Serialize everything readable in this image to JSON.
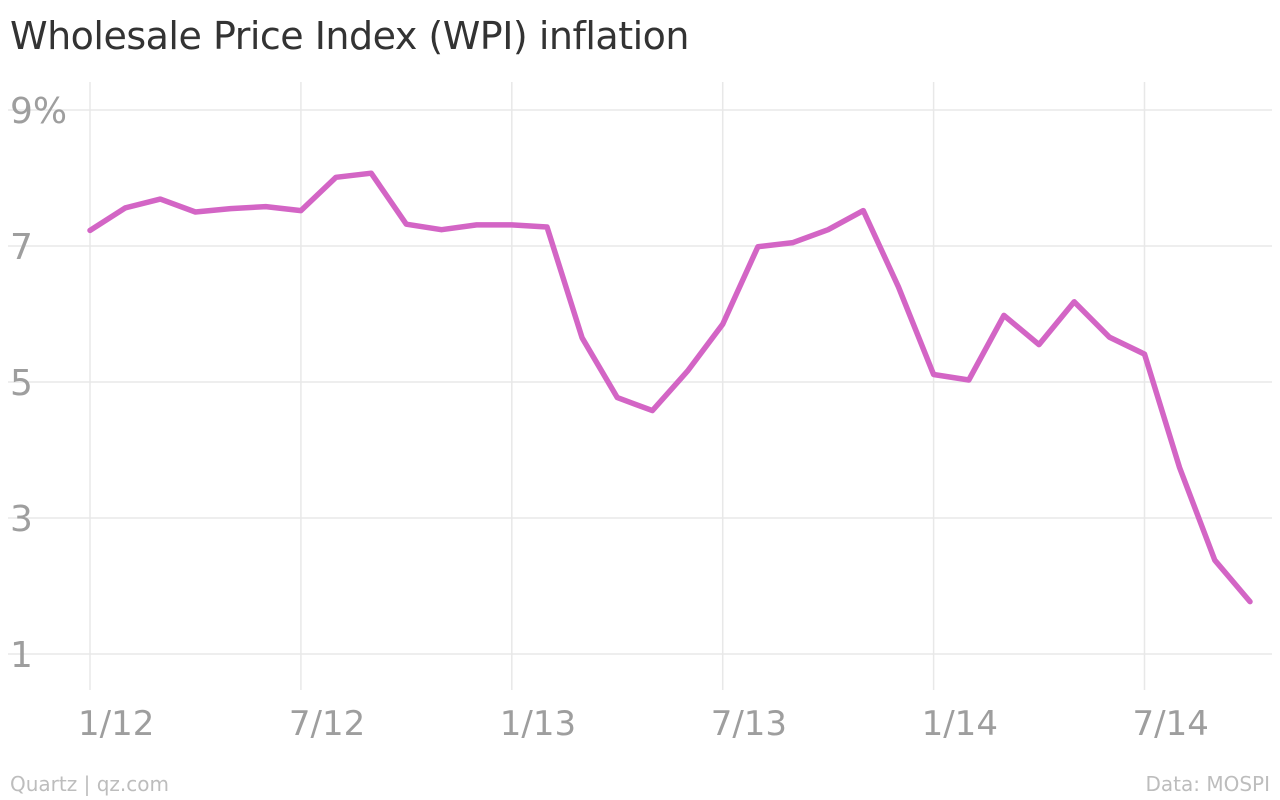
{
  "chart_data": {
    "type": "line",
    "title": "Wholesale Price Index (WPI) inflation",
    "xlabel": "",
    "ylabel": "",
    "x_start": "2012-01",
    "x_end": "2014-08",
    "xticks": [
      {
        "date": "2012-01",
        "label": "1/12"
      },
      {
        "date": "2012-07",
        "label": "7/12"
      },
      {
        "date": "2013-01",
        "label": "1/13"
      },
      {
        "date": "2013-07",
        "label": "7/13"
      },
      {
        "date": "2014-01",
        "label": "1/14"
      },
      {
        "date": "2014-07",
        "label": "7/14"
      }
    ],
    "yticks": [
      {
        "value": 1,
        "label": "1"
      },
      {
        "value": 3,
        "label": "3"
      },
      {
        "value": 5,
        "label": "5"
      },
      {
        "value": 7,
        "label": "7"
      },
      {
        "value": 9,
        "label": "9%"
      }
    ],
    "ylim": [
      1,
      9
    ],
    "grid": true,
    "color": "#d365c5",
    "series": [
      {
        "x": [
          "2012-01",
          "2012-02",
          "2012-03",
          "2012-04",
          "2012-05",
          "2012-06",
          "2012-07",
          "2012-08",
          "2012-09",
          "2012-10",
          "2012-11",
          "2012-12",
          "2013-01",
          "2013-02",
          "2013-03",
          "2013-04",
          "2013-05",
          "2013-06",
          "2013-07",
          "2013-08",
          "2013-09",
          "2013-10",
          "2013-11",
          "2013-12",
          "2014-01",
          "2014-02",
          "2014-03",
          "2014-04",
          "2014-05",
          "2014-06",
          "2014-07",
          "2014-08"
        ],
        "values": [
          7.23,
          7.56,
          7.69,
          7.5,
          7.55,
          7.58,
          7.52,
          8.01,
          8.07,
          7.32,
          7.24,
          7.31,
          7.31,
          7.28,
          5.65,
          4.77,
          4.58,
          5.16,
          5.85,
          6.99,
          7.05,
          7.24,
          7.52,
          6.4,
          5.11,
          5.03,
          5.98,
          5.55,
          6.18,
          5.66,
          5.41,
          3.74
        ]
      }
    ],
    "series_tail": {
      "x": [
        "2014-09",
        "2014-10"
      ],
      "values": [
        2.38,
        1.77
      ]
    }
  },
  "footer": {
    "source_left": "Quartz | qz.com",
    "source_right": "Data: MOSPI"
  }
}
